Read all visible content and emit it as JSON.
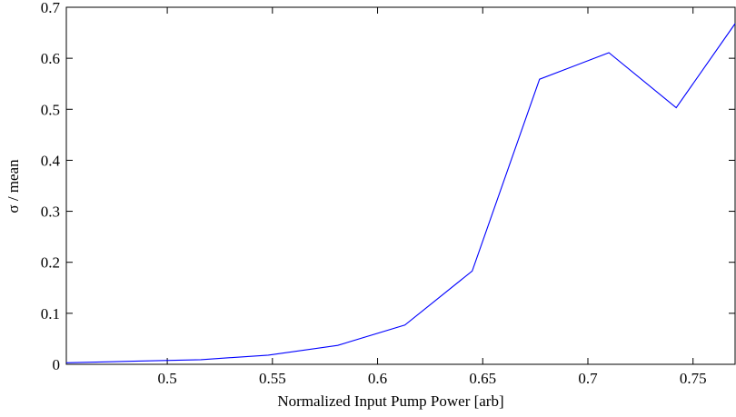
{
  "chart_data": {
    "type": "line",
    "title": "",
    "xlabel": "Normalized Input Pump Power [arb]",
    "ylabel": "σ / mean",
    "xlim": [
      0.452,
      0.77
    ],
    "ylim": [
      0,
      0.7
    ],
    "xticks": [
      0.5,
      0.55,
      0.6,
      0.65,
      0.7,
      0.75
    ],
    "xtick_labels": [
      "0.5",
      "0.55",
      "0.6",
      "0.65",
      "0.7",
      "0.75"
    ],
    "yticks": [
      0,
      0.1,
      0.2,
      0.3,
      0.4,
      0.5,
      0.6,
      0.7
    ],
    "ytick_labels": [
      "0",
      "0.1",
      "0.2",
      "0.3",
      "0.4",
      "0.5",
      "0.6",
      "0.7"
    ],
    "grid": false,
    "legend": "none",
    "series": [
      {
        "color": "#0000ff",
        "x": [
          0.452,
          0.484,
          0.516,
          0.548,
          0.581,
          0.613,
          0.645,
          0.677,
          0.71,
          0.742,
          0.77
        ],
        "y": [
          0.003,
          0.006,
          0.009,
          0.018,
          0.037,
          0.077,
          0.183,
          0.559,
          0.611,
          0.503,
          0.668
        ]
      }
    ]
  }
}
